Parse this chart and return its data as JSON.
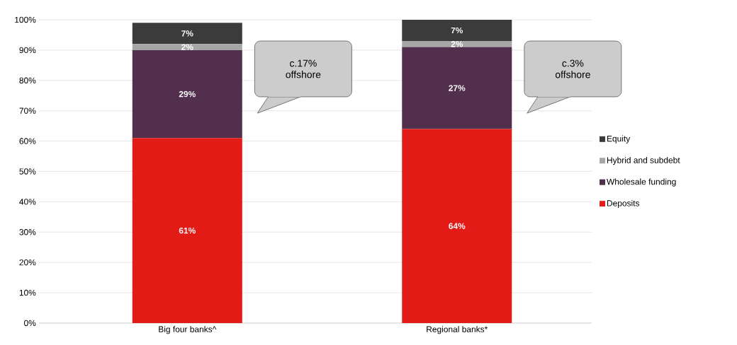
{
  "chart_data": {
    "type": "bar",
    "stacked": true,
    "categories": [
      "Big four banks^",
      "Regional banks*"
    ],
    "series": [
      {
        "name": "Deposits",
        "color": "#e21b17",
        "values": [
          61,
          64
        ],
        "value_labels": [
          "61%",
          "64%"
        ]
      },
      {
        "name": "Wholesale funding",
        "color": "#52304d",
        "values": [
          29,
          27
        ],
        "value_labels": [
          "29%",
          "27%"
        ]
      },
      {
        "name": "Hybrid and subdebt",
        "color": "#a6a6a6",
        "values": [
          2,
          2
        ],
        "value_labels": [
          "2%",
          "2%"
        ]
      },
      {
        "name": "Equity",
        "color": "#3b3b3b",
        "values": [
          7,
          7
        ],
        "value_labels": [
          "7%",
          "7%"
        ]
      }
    ],
    "ylim": [
      0,
      100
    ],
    "yticks": [
      {
        "value": 0,
        "label": "0%"
      },
      {
        "value": 10,
        "label": "10%"
      },
      {
        "value": 20,
        "label": "20%"
      },
      {
        "value": 30,
        "label": "30%"
      },
      {
        "value": 40,
        "label": "40%"
      },
      {
        "value": 50,
        "label": "50%"
      },
      {
        "value": 60,
        "label": "60%"
      },
      {
        "value": 70,
        "label": "70%"
      },
      {
        "value": 80,
        "label": "80%"
      },
      {
        "value": 90,
        "label": "90%"
      },
      {
        "value": 100,
        "label": "100%"
      }
    ],
    "grid": "y",
    "legend": "right",
    "annotations": [
      "c.17% offshore",
      "c.3% offshore"
    ]
  }
}
